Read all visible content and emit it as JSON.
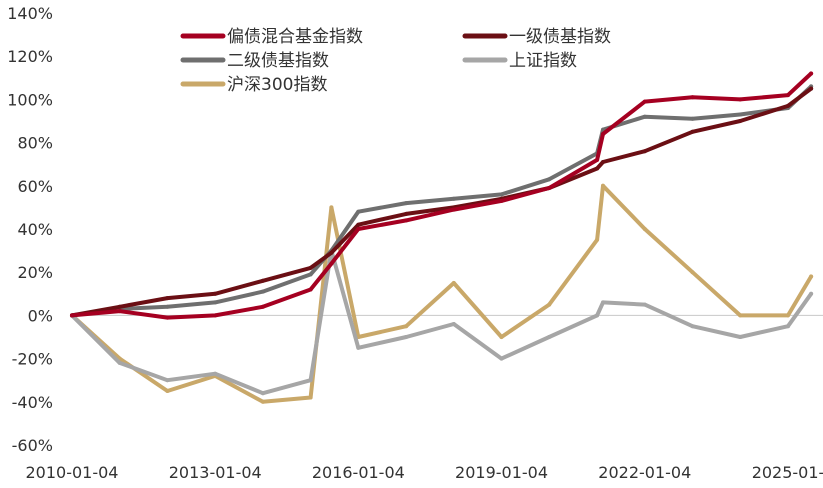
{
  "chart_data": {
    "type": "line",
    "title": "",
    "xlabel": "",
    "ylabel": "",
    "x_ticks": [
      "2010-01-04",
      "2013-01-04",
      "2016-01-04",
      "2019-01-04",
      "2022-01-04",
      "2025-01-"
    ],
    "y_ticks": [
      "140%",
      "120%",
      "100%",
      "80%",
      "60%",
      "40%",
      "20%",
      "0%",
      "-20%",
      "-40%",
      "-60%"
    ],
    "ylim": [
      -60,
      140
    ],
    "y_unit": "%",
    "legend": {
      "placement": "top-left",
      "columns": 2
    },
    "grid": false,
    "zero_line": true,
    "x": [
      "2010-01-04",
      "2011-01-04",
      "2012-01-04",
      "2013-01-04",
      "2014-01-04",
      "2015-01-04",
      "2015-06-12",
      "2016-01-04",
      "2017-01-04",
      "2018-01-04",
      "2019-01-04",
      "2020-01-04",
      "2021-01-04",
      "2021-02-18",
      "2022-01-04",
      "2023-01-04",
      "2024-01-04",
      "2025-01-04",
      "2025-06-30"
    ],
    "series": [
      {
        "name": "偏债混合基金指数",
        "color": "#A50021",
        "values": [
          0,
          2,
          -1,
          0,
          4,
          12,
          24,
          40,
          44,
          49,
          53,
          59,
          72,
          84,
          99,
          101,
          100,
          102,
          112
        ]
      },
      {
        "name": "一级债基指数",
        "color": "#6B0F14",
        "values": [
          0,
          4,
          8,
          10,
          16,
          22,
          29,
          42,
          47,
          50,
          54,
          59,
          68,
          71,
          76,
          85,
          90,
          97,
          105
        ]
      },
      {
        "name": "二级债基指数",
        "color": "#6F6F6F",
        "values": [
          0,
          3,
          4,
          6,
          11,
          19,
          30,
          48,
          52,
          54,
          56,
          63,
          75,
          86,
          92,
          91,
          93,
          96,
          106
        ]
      },
      {
        "name": "上证指数",
        "color": "#A6A6A6",
        "values": [
          0,
          -22,
          -30,
          -27,
          -36,
          -30,
          30,
          -15,
          -10,
          -4,
          -20,
          -10,
          0,
          6,
          5,
          -5,
          -10,
          -5,
          10
        ]
      },
      {
        "name": "沪深300指数",
        "color": "#C9A869",
        "values": [
          0,
          -20,
          -35,
          -28,
          -40,
          -38,
          50,
          -10,
          -5,
          15,
          -10,
          5,
          35,
          60,
          40,
          20,
          0,
          0,
          18
        ]
      }
    ]
  }
}
